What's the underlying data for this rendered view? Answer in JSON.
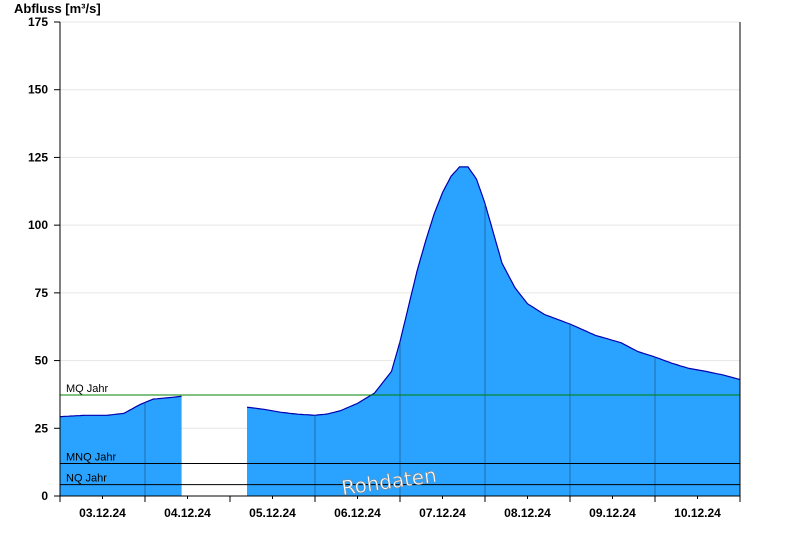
{
  "chart_data": {
    "type": "area",
    "ylabel": "Abfluss [m³/s]",
    "ylim": [
      0,
      175
    ],
    "yticks": [
      0,
      25,
      50,
      75,
      100,
      125,
      150,
      175
    ],
    "xticks": [
      "03.12.24",
      "04.12.24",
      "05.12.24",
      "06.12.24",
      "07.12.24",
      "08.12.24",
      "09.12.24",
      "10.12.24"
    ],
    "grid": true,
    "colors": {
      "fill": "#29a3ff",
      "outline": "#0000b0",
      "mq_line": "#008000",
      "ref_line": "#000000"
    },
    "reference_lines": [
      {
        "label": "MQ Jahr",
        "value": 37.3,
        "color": "#008000"
      },
      {
        "label": "MNQ Jahr",
        "value": 12,
        "color": "#000000"
      },
      {
        "label": "NQ Jahr",
        "value": 4.2,
        "color": "#000000"
      }
    ],
    "watermark": "Rohdaten",
    "segments": [
      {
        "x": [
          0.0,
          0.3,
          0.55,
          0.75,
          0.85,
          0.95,
          1.1,
          1.25,
          1.43
        ],
        "y": [
          29.3,
          29.8,
          29.8,
          30.5,
          32.2,
          33.9,
          35.8,
          36.2,
          36.8
        ]
      },
      {
        "x": [
          2.2,
          2.4,
          2.6,
          2.8,
          3.0,
          3.15,
          3.3,
          3.5,
          3.7,
          3.9,
          4.0,
          4.1,
          4.2,
          4.3,
          4.4,
          4.5,
          4.6,
          4.7,
          4.8,
          4.9,
          5.0,
          5.1,
          5.2,
          5.35,
          5.5,
          5.7,
          6.0,
          6.3,
          6.6,
          6.8,
          7.0,
          7.2,
          7.4,
          7.6,
          7.8,
          8.0
        ],
        "y": [
          32.8,
          32.0,
          30.9,
          30.2,
          29.8,
          30.3,
          31.5,
          34.2,
          38.0,
          46.0,
          57.0,
          70.0,
          83.0,
          94.0,
          104.0,
          112.0,
          118.0,
          121.5,
          121.5,
          117.0,
          108.0,
          97.0,
          86.0,
          77.0,
          71.0,
          67.0,
          63.5,
          59.3,
          56.6,
          53.3,
          51.3,
          49.0,
          47.1,
          46.0,
          44.7,
          43.0
        ]
      }
    ]
  }
}
